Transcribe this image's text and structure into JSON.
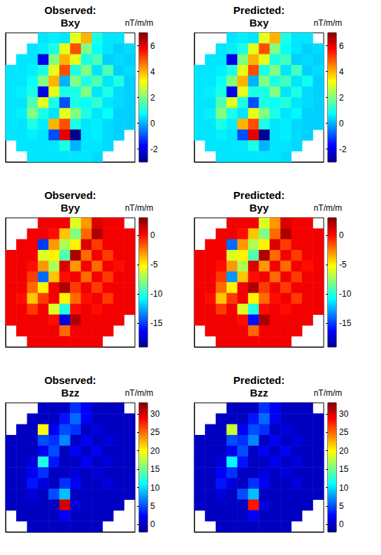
{
  "chart_data": [
    {
      "type": "heatmap",
      "title": "Observed:",
      "subtitle": "Bxy",
      "tick_labels": false,
      "colorbar": {
        "label": "nT/m/m",
        "range": [
          -3,
          7
        ],
        "ticks": [
          -2,
          0,
          2,
          4,
          6
        ]
      },
      "cells": [
        [
          null,
          null,
          null,
          0.5,
          0.6,
          0.5,
          3,
          4,
          1,
          0.5,
          0.5,
          null
        ],
        [
          null,
          null,
          0.5,
          0.6,
          1,
          3,
          5,
          2,
          0.8,
          0.5,
          0.3,
          0.4
        ],
        [
          null,
          0.5,
          0.5,
          -2,
          2,
          4,
          3,
          1,
          1.5,
          0.3,
          0.4,
          0.3
        ],
        [
          0.5,
          0.5,
          0.6,
          1,
          3,
          5,
          1,
          2,
          0.5,
          1.5,
          0.3,
          0.4
        ],
        [
          0.5,
          0.5,
          0.8,
          2,
          4,
          0,
          2,
          1,
          1.5,
          0.5,
          1,
          0.3
        ],
        [
          0.5,
          0.6,
          1,
          -2,
          3,
          1,
          1,
          2,
          0.5,
          1,
          0.4,
          0.3
        ],
        [
          0.5,
          0.5,
          1.5,
          3,
          1,
          -1,
          1,
          0.8,
          1.2,
          0.5,
          0.4,
          0.3
        ],
        [
          0.5,
          0.6,
          2,
          1,
          0.5,
          3,
          2,
          1,
          0.5,
          0.8,
          0.3,
          0.3
        ],
        [
          0.5,
          0.5,
          1,
          0.6,
          4,
          5,
          1,
          0.5,
          0.6,
          0.4,
          0.3,
          0.3
        ],
        [
          0.5,
          0.5,
          0.6,
          0.5,
          -1,
          6,
          -3,
          0.5,
          0.6,
          0.4,
          0.3,
          null
        ],
        [
          null,
          0.5,
          0.5,
          0.5,
          0.5,
          1,
          0,
          0.5,
          0.5,
          0.4,
          null,
          null
        ],
        [
          null,
          null,
          0.5,
          0.5,
          0.5,
          0.5,
          0.5,
          0.5,
          0.4,
          null,
          null,
          null
        ]
      ]
    },
    {
      "type": "heatmap",
      "title": "Predicted:",
      "subtitle": "Bxy",
      "tick_labels": false,
      "colorbar": {
        "label": "nT/m/m",
        "range": [
          -3,
          7
        ],
        "ticks": [
          -2,
          0,
          2,
          4,
          6
        ]
      },
      "cells": [
        [
          null,
          null,
          null,
          0.5,
          0.6,
          0.5,
          3,
          4,
          1,
          0.5,
          0.5,
          null
        ],
        [
          null,
          null,
          0.5,
          0.6,
          1,
          3,
          5,
          2,
          0.8,
          0.5,
          0.3,
          0.4
        ],
        [
          null,
          0.5,
          0.5,
          -2,
          2,
          4,
          3,
          1,
          1.4,
          0.3,
          0.4,
          0.3
        ],
        [
          0.5,
          0.5,
          0.6,
          1,
          3,
          5,
          1,
          2,
          0.5,
          1.4,
          0.3,
          0.4
        ],
        [
          0.5,
          0.5,
          0.8,
          2,
          4,
          0,
          2,
          1,
          1.4,
          0.5,
          0.9,
          0.3
        ],
        [
          0.5,
          0.6,
          1,
          -2,
          3,
          1,
          1,
          2,
          0.5,
          1,
          0.4,
          0.3
        ],
        [
          0.5,
          0.5,
          1.5,
          3,
          1,
          -1,
          1,
          0.8,
          1.1,
          0.5,
          0.4,
          0.3
        ],
        [
          0.5,
          0.6,
          2,
          1,
          0.5,
          3,
          2,
          1,
          0.5,
          0.7,
          0.3,
          0.3
        ],
        [
          0.5,
          0.5,
          1,
          0.6,
          4,
          5,
          1,
          0.5,
          0.6,
          0.4,
          0.3,
          0.3
        ],
        [
          0.5,
          0.5,
          0.6,
          0.5,
          -1,
          6,
          -3,
          0.5,
          0.6,
          0.4,
          0.3,
          null
        ],
        [
          null,
          0.5,
          0.5,
          0.5,
          0.5,
          1,
          0,
          0.5,
          0.5,
          0.4,
          null,
          null
        ],
        [
          null,
          null,
          0.5,
          0.5,
          0.5,
          0.5,
          0.5,
          0.5,
          0.4,
          null,
          null,
          null
        ]
      ]
    },
    {
      "type": "heatmap",
      "title": "Observed:",
      "subtitle": "Byy",
      "tick_labels": false,
      "colorbar": {
        "label": "nT/m/m",
        "range": [
          -19,
          3
        ],
        "ticks": [
          -15,
          -10,
          -5,
          0
        ]
      },
      "cells": [
        [
          null,
          null,
          null,
          0.5,
          0.5,
          0.5,
          -6,
          -3,
          1,
          0.5,
          0.5,
          null
        ],
        [
          null,
          null,
          0.5,
          0.5,
          0,
          -4,
          -8,
          -2,
          2,
          0.5,
          0.5,
          0.5
        ],
        [
          null,
          0.5,
          0.5,
          -15,
          -3,
          -7,
          -5,
          1,
          -1,
          0.5,
          0.5,
          0.5
        ],
        [
          0.5,
          0.5,
          0.5,
          -6,
          -5,
          -9,
          2,
          -2,
          0.5,
          -1,
          0.5,
          0.5
        ],
        [
          0.5,
          0.5,
          0,
          -3,
          -7,
          1,
          -3,
          0.5,
          -2,
          0.5,
          0,
          0.5
        ],
        [
          0.5,
          0.5,
          -1,
          -14,
          -4,
          0,
          0.5,
          -2,
          0.5,
          -1,
          0.5,
          0.5
        ],
        [
          0.5,
          0.5,
          -2,
          -5,
          0.5,
          2,
          -1,
          0.5,
          -1,
          0.5,
          0.5,
          0.5
        ],
        [
          0.5,
          0,
          -4,
          -1,
          0.5,
          -5,
          -2,
          0,
          0.5,
          -1,
          0.5,
          0.5
        ],
        [
          0.5,
          0.5,
          -1,
          0.5,
          -6,
          -10,
          0,
          0.5,
          0,
          0.5,
          0.5,
          0.5
        ],
        [
          0.5,
          0.5,
          0.5,
          0.5,
          0,
          -17,
          2,
          0.5,
          0.5,
          0.5,
          0.5,
          null
        ],
        [
          null,
          0.5,
          0.5,
          0.5,
          0.5,
          -2,
          0.5,
          0.5,
          0.5,
          0.5,
          null,
          null
        ],
        [
          null,
          null,
          0.5,
          0.5,
          0.5,
          0.5,
          0.5,
          0.5,
          0.5,
          null,
          null,
          null
        ]
      ]
    },
    {
      "type": "heatmap",
      "title": "Predicted:",
      "subtitle": "Byy",
      "tick_labels": false,
      "colorbar": {
        "label": "nT/m/m",
        "range": [
          -19,
          3
        ],
        "ticks": [
          -15,
          -10,
          -5,
          0
        ]
      },
      "cells": [
        [
          null,
          null,
          null,
          0.5,
          0.5,
          0.5,
          -6,
          -3,
          1,
          0.5,
          0.5,
          null
        ],
        [
          null,
          null,
          0.5,
          0.5,
          0,
          -4,
          -8,
          -2,
          2,
          0.5,
          0.5,
          0.5
        ],
        [
          null,
          0.5,
          0.5,
          -14,
          -3,
          -7,
          -5,
          1,
          -1,
          0.5,
          0.5,
          0.5
        ],
        [
          0.5,
          0.5,
          0.5,
          -6,
          -5,
          -9,
          2,
          -2,
          0.5,
          -1,
          0.5,
          0.5
        ],
        [
          0.5,
          0.5,
          0,
          -3,
          -7,
          1,
          -3,
          0.5,
          -2,
          0.5,
          0,
          0.5
        ],
        [
          0.5,
          0.5,
          -1,
          -13,
          -4,
          0,
          0.5,
          -2,
          0.5,
          -1,
          0.5,
          0.5
        ],
        [
          0.5,
          0.5,
          -2,
          -5,
          0.5,
          2,
          -1,
          0.5,
          -1,
          0.5,
          0.5,
          0.5
        ],
        [
          0.5,
          0,
          -4,
          -1,
          0.5,
          -5,
          -2,
          0,
          0.5,
          -1,
          0.5,
          0.5
        ],
        [
          0.5,
          0.5,
          -1,
          0.5,
          -6,
          -10,
          0,
          0.5,
          0,
          0.5,
          0.5,
          0.5
        ],
        [
          0.5,
          0.5,
          0.5,
          0.5,
          0,
          -16,
          2,
          0.5,
          0.5,
          0.5,
          0.5,
          null
        ],
        [
          null,
          0.5,
          0.5,
          0.5,
          0.5,
          -2,
          0.5,
          0.5,
          0.5,
          0.5,
          null,
          null
        ],
        [
          null,
          null,
          0.5,
          0.5,
          0.5,
          0.5,
          0.5,
          0.5,
          0.5,
          null,
          null,
          null
        ]
      ]
    },
    {
      "type": "heatmap",
      "title": "Observed:",
      "subtitle": "Bzz",
      "tick_labels": false,
      "colorbar": {
        "label": "nT/m/m",
        "range": [
          -2,
          33
        ],
        "ticks": [
          0,
          5,
          10,
          15,
          20,
          25,
          30
        ]
      },
      "cells": [
        [
          null,
          null,
          null,
          0,
          0,
          0,
          4,
          2,
          0,
          0,
          0,
          null
        ],
        [
          null,
          null,
          0,
          0,
          0,
          3,
          6,
          2,
          0,
          0,
          0,
          0
        ],
        [
          null,
          0,
          0,
          20,
          2,
          5,
          4,
          0,
          1,
          0,
          0,
          0
        ],
        [
          0,
          0,
          0,
          5,
          4,
          7,
          0,
          2,
          0,
          1,
          0,
          0
        ],
        [
          0,
          0,
          0,
          2,
          5,
          0,
          2,
          0,
          2,
          0,
          0,
          0
        ],
        [
          0,
          0,
          1,
          12,
          3,
          0,
          0,
          2,
          0,
          1,
          0,
          0
        ],
        [
          0,
          0,
          2,
          4,
          0,
          0,
          1,
          0,
          1,
          0,
          0,
          0
        ],
        [
          0,
          0,
          3,
          1,
          0,
          4,
          2,
          0,
          0,
          1,
          0,
          0
        ],
        [
          0,
          0,
          1,
          0,
          5,
          9,
          0,
          0,
          0,
          0,
          0,
          0
        ],
        [
          0,
          0,
          0,
          0,
          0,
          30,
          1,
          0,
          0,
          0,
          0,
          null
        ],
        [
          null,
          0,
          0,
          0,
          0,
          2,
          0,
          0,
          0,
          0,
          null,
          null
        ],
        [
          null,
          null,
          0,
          0,
          0,
          0,
          0,
          0,
          0,
          null,
          null,
          null
        ]
      ]
    },
    {
      "type": "heatmap",
      "title": "Predicted:",
      "subtitle": "Bzz",
      "tick_labels": false,
      "colorbar": {
        "label": "nT/m/m",
        "range": [
          -2,
          33
        ],
        "ticks": [
          0,
          5,
          10,
          15,
          20,
          25,
          30
        ]
      },
      "cells": [
        [
          null,
          null,
          null,
          0,
          0,
          0,
          4,
          2,
          0,
          0,
          0,
          null
        ],
        [
          null,
          null,
          0,
          0,
          0,
          3,
          6,
          2,
          0,
          0,
          0,
          0
        ],
        [
          null,
          0,
          0,
          18,
          2,
          5,
          4,
          0,
          1,
          0,
          0,
          0
        ],
        [
          0,
          0,
          0,
          5,
          4,
          7,
          0,
          2,
          0,
          1,
          0,
          0
        ],
        [
          0,
          0,
          0,
          2,
          5,
          0,
          2,
          0,
          2,
          0,
          0,
          0
        ],
        [
          0,
          0,
          1,
          11,
          3,
          0,
          0,
          2,
          0,
          1,
          0,
          0
        ],
        [
          0,
          0,
          2,
          4,
          0,
          0,
          1,
          0,
          1,
          0,
          0,
          0
        ],
        [
          0,
          0,
          3,
          1,
          0,
          4,
          2,
          0,
          0,
          1,
          0,
          0
        ],
        [
          0,
          0,
          1,
          0,
          5,
          9,
          0,
          0,
          0,
          0,
          0,
          0
        ],
        [
          0,
          0,
          0,
          0,
          0,
          28,
          1,
          0,
          0,
          0,
          0,
          null
        ],
        [
          null,
          0,
          0,
          0,
          0,
          2,
          0,
          0,
          0,
          0,
          null,
          null
        ],
        [
          null,
          null,
          0,
          0,
          0,
          0,
          0,
          0,
          0,
          null,
          null,
          null
        ]
      ]
    }
  ]
}
